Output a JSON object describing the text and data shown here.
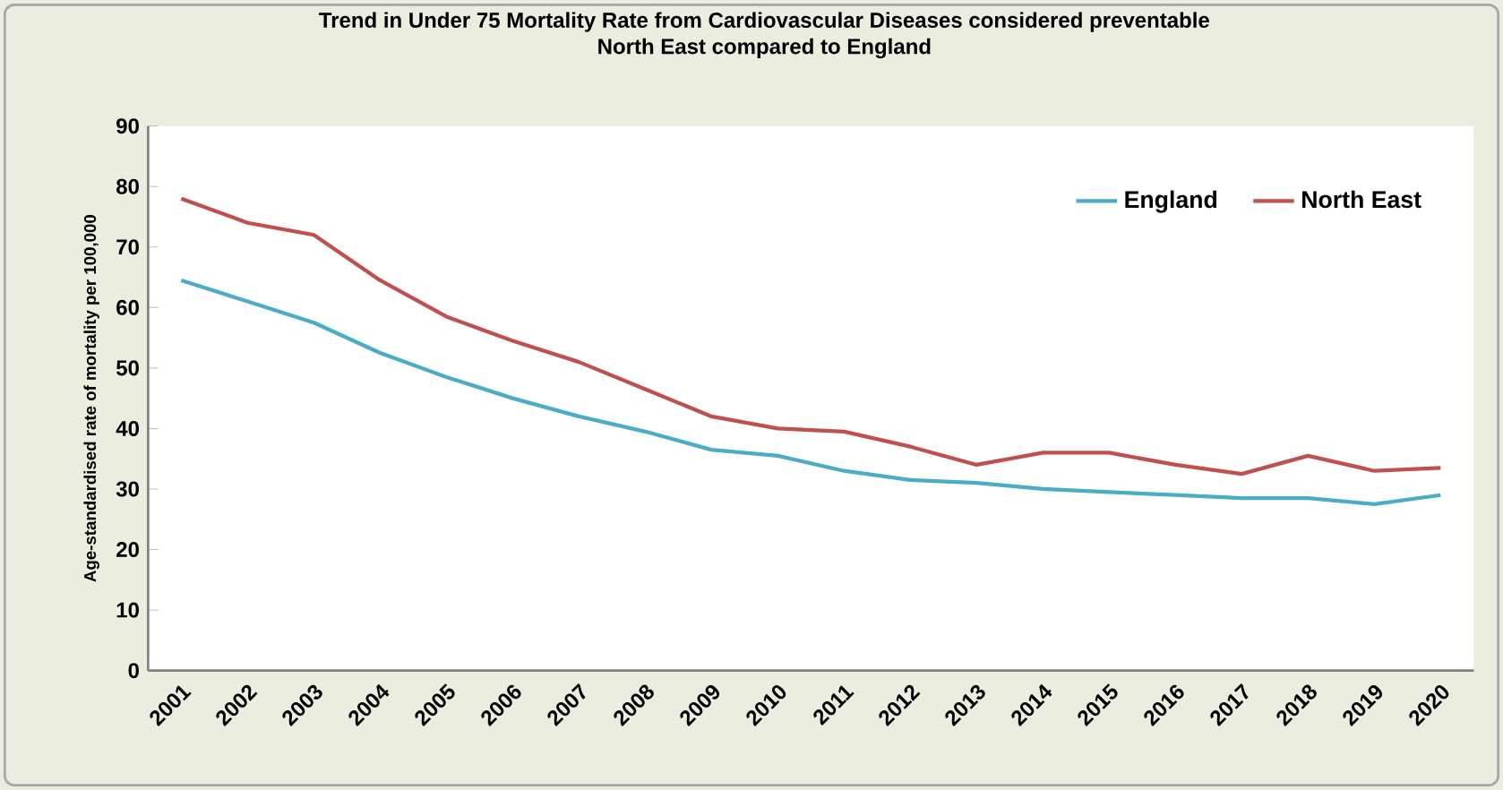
{
  "chart_data": {
    "type": "line",
    "title": "Trend in Under 75 Mortality Rate from Cardiovascular Diseases considered preventable",
    "subtitle": "North East compared to England",
    "ylabel": "Age-standardised rate of mortality per 100,000",
    "categories": [
      "2001",
      "2002",
      "2003",
      "2004",
      "2005",
      "2006",
      "2007",
      "2008",
      "2009",
      "2010",
      "2011",
      "2012",
      "2013",
      "2014",
      "2015",
      "2016",
      "2017",
      "2018",
      "2019",
      "2020"
    ],
    "series": [
      {
        "name": "England",
        "color": "#4bacc6",
        "values": [
          64.5,
          61,
          57.5,
          52.5,
          48.5,
          45,
          42,
          39.5,
          36.5,
          35.5,
          33,
          31.5,
          31,
          30,
          29.5,
          29,
          28.5,
          28.5,
          27.5,
          29
        ]
      },
      {
        "name": "North East",
        "color": "#c0504d",
        "values": [
          78,
          74,
          72,
          64.5,
          58.5,
          54.5,
          51,
          46.5,
          42,
          40,
          39.5,
          37,
          34,
          36,
          36,
          34,
          32.5,
          35.5,
          33,
          33.5
        ]
      }
    ],
    "ylim": [
      0,
      90
    ],
    "yticks": [
      0,
      10,
      20,
      30,
      40,
      50,
      60,
      70,
      80,
      90
    ],
    "legend": "top right",
    "grid": false,
    "marker": "none",
    "line_style": "solid"
  }
}
